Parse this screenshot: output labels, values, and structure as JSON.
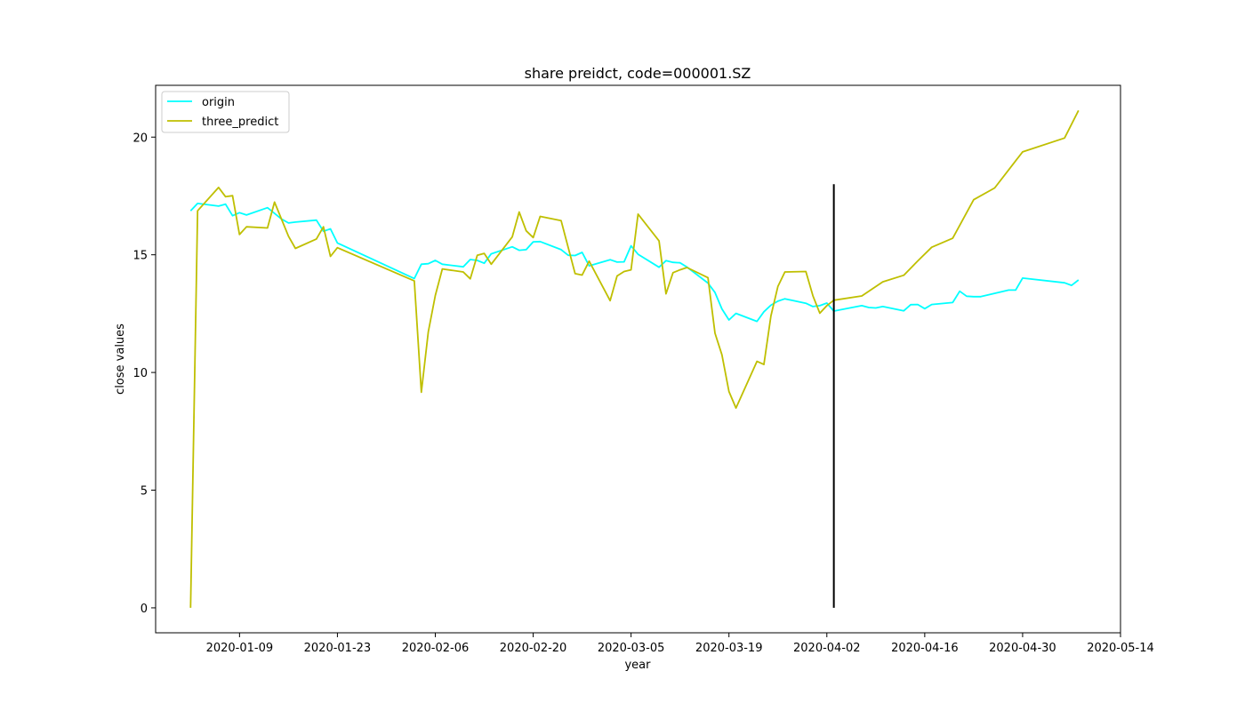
{
  "chart_data": {
    "type": "line",
    "title": "share preidct, code=000001.SZ",
    "xlabel": "year",
    "ylabel": "close values",
    "x_ticks": [
      "2020-01-09",
      "2020-01-23",
      "2020-02-06",
      "2020-02-20",
      "2020-03-05",
      "2020-03-19",
      "2020-04-02",
      "2020-04-16",
      "2020-04-30",
      "2020-05-14"
    ],
    "y_ticks": [
      0,
      5,
      10,
      15,
      20
    ],
    "xlim": [
      "2019-12-28",
      "2020-05-14"
    ],
    "ylim": [
      -1.06,
      22.2
    ],
    "legend": {
      "placement": "top-left",
      "entries": [
        "origin",
        "three_predict"
      ]
    },
    "grid": false,
    "divider": {
      "date": "2020-04-03",
      "y_range": [
        0,
        18
      ]
    },
    "colors": {
      "origin": "#00ffff",
      "three_predict": "#bfbf00",
      "divider": "#000000"
    },
    "series": [
      {
        "name": "origin",
        "points": [
          [
            "2020-01-02",
            16.87
          ],
          [
            "2020-01-03",
            17.18
          ],
          [
            "2020-01-06",
            17.07
          ],
          [
            "2020-01-07",
            17.15
          ],
          [
            "2020-01-08",
            16.66
          ],
          [
            "2020-01-09",
            16.79
          ],
          [
            "2020-01-10",
            16.69
          ],
          [
            "2020-01-13",
            17.0
          ],
          [
            "2020-01-14",
            16.76
          ],
          [
            "2020-01-15",
            16.52
          ],
          [
            "2020-01-16",
            16.35
          ],
          [
            "2020-01-17",
            16.39
          ],
          [
            "2020-01-20",
            16.47
          ],
          [
            "2020-01-21",
            16.0
          ],
          [
            "2020-01-22",
            16.1
          ],
          [
            "2020-01-23",
            15.5
          ],
          [
            "2020-02-03",
            13.99
          ],
          [
            "2020-02-04",
            14.6
          ],
          [
            "2020-02-05",
            14.62
          ],
          [
            "2020-02-06",
            14.76
          ],
          [
            "2020-02-07",
            14.6
          ],
          [
            "2020-02-10",
            14.49
          ],
          [
            "2020-02-11",
            14.8
          ],
          [
            "2020-02-12",
            14.76
          ],
          [
            "2020-02-13",
            14.64
          ],
          [
            "2020-02-14",
            15.04
          ],
          [
            "2020-02-17",
            15.34
          ],
          [
            "2020-02-18",
            15.19
          ],
          [
            "2020-02-19",
            15.22
          ],
          [
            "2020-02-20",
            15.55
          ],
          [
            "2020-02-21",
            15.56
          ],
          [
            "2020-02-24",
            15.22
          ],
          [
            "2020-02-25",
            14.98
          ],
          [
            "2020-02-26",
            14.97
          ],
          [
            "2020-02-27",
            15.1
          ],
          [
            "2020-02-28",
            14.53
          ],
          [
            "2020-03-02",
            14.79
          ],
          [
            "2020-03-03",
            14.69
          ],
          [
            "2020-03-04",
            14.7
          ],
          [
            "2020-03-05",
            15.38
          ],
          [
            "2020-03-06",
            15.02
          ],
          [
            "2020-03-09",
            14.47
          ],
          [
            "2020-03-10",
            14.75
          ],
          [
            "2020-03-11",
            14.68
          ],
          [
            "2020-03-12",
            14.66
          ],
          [
            "2020-03-13",
            14.48
          ],
          [
            "2020-03-16",
            13.8
          ],
          [
            "2020-03-17",
            13.4
          ],
          [
            "2020-03-18",
            12.7
          ],
          [
            "2020-03-19",
            12.23
          ],
          [
            "2020-03-20",
            12.51
          ],
          [
            "2020-03-23",
            12.17
          ],
          [
            "2020-03-24",
            12.58
          ],
          [
            "2020-03-25",
            12.86
          ],
          [
            "2020-03-26",
            13.03
          ],
          [
            "2020-03-27",
            13.13
          ],
          [
            "2020-03-30",
            12.94
          ],
          [
            "2020-03-31",
            12.8
          ],
          [
            "2020-04-01",
            12.84
          ],
          [
            "2020-04-02",
            12.95
          ],
          [
            "2020-04-03",
            12.61
          ],
          [
            "2020-04-07",
            12.84
          ],
          [
            "2020-04-08",
            12.76
          ],
          [
            "2020-04-09",
            12.74
          ],
          [
            "2020-04-10",
            12.8
          ],
          [
            "2020-04-13",
            12.62
          ],
          [
            "2020-04-14",
            12.88
          ],
          [
            "2020-04-15",
            12.89
          ],
          [
            "2020-04-16",
            12.71
          ],
          [
            "2020-04-17",
            12.89
          ],
          [
            "2020-04-20",
            12.97
          ],
          [
            "2020-04-21",
            13.45
          ],
          [
            "2020-04-22",
            13.24
          ],
          [
            "2020-04-23",
            13.22
          ],
          [
            "2020-04-24",
            13.22
          ],
          [
            "2020-04-27",
            13.43
          ],
          [
            "2020-04-28",
            13.5
          ],
          [
            "2020-04-29",
            13.5
          ],
          [
            "2020-04-30",
            14.01
          ],
          [
            "2020-05-06",
            13.81
          ],
          [
            "2020-05-07",
            13.7
          ],
          [
            "2020-05-08",
            13.93
          ]
        ]
      },
      {
        "name": "three_predict",
        "points": [
          [
            "2020-01-02",
            0.0
          ],
          [
            "2020-01-03",
            16.87
          ],
          [
            "2020-01-06",
            17.86
          ],
          [
            "2020-01-07",
            17.47
          ],
          [
            "2020-01-08",
            17.51
          ],
          [
            "2020-01-09",
            15.86
          ],
          [
            "2020-01-10",
            16.19
          ],
          [
            "2020-01-13",
            16.14
          ],
          [
            "2020-01-14",
            17.24
          ],
          [
            "2020-01-16",
            15.79
          ],
          [
            "2020-01-17",
            15.27
          ],
          [
            "2020-01-20",
            15.67
          ],
          [
            "2020-01-21",
            16.19
          ],
          [
            "2020-01-22",
            14.93
          ],
          [
            "2020-01-23",
            15.3
          ],
          [
            "2020-02-03",
            13.89
          ],
          [
            "2020-02-04",
            9.16
          ],
          [
            "2020-02-05",
            11.72
          ],
          [
            "2020-02-06",
            13.27
          ],
          [
            "2020-02-07",
            14.4
          ],
          [
            "2020-02-10",
            14.27
          ],
          [
            "2020-02-11",
            13.98
          ],
          [
            "2020-02-12",
            14.98
          ],
          [
            "2020-02-13",
            15.06
          ],
          [
            "2020-02-14",
            14.6
          ],
          [
            "2020-02-17",
            15.76
          ],
          [
            "2020-02-18",
            16.82
          ],
          [
            "2020-02-19",
            16.02
          ],
          [
            "2020-02-20",
            15.73
          ],
          [
            "2020-02-21",
            16.63
          ],
          [
            "2020-02-24",
            16.45
          ],
          [
            "2020-02-26",
            14.2
          ],
          [
            "2020-02-27",
            14.14
          ],
          [
            "2020-02-28",
            14.73
          ],
          [
            "2020-03-02",
            13.05
          ],
          [
            "2020-03-03",
            14.1
          ],
          [
            "2020-03-04",
            14.29
          ],
          [
            "2020-03-05",
            14.36
          ],
          [
            "2020-03-06",
            16.73
          ],
          [
            "2020-03-09",
            15.59
          ],
          [
            "2020-03-10",
            13.34
          ],
          [
            "2020-03-11",
            14.24
          ],
          [
            "2020-03-12",
            14.36
          ],
          [
            "2020-03-13",
            14.46
          ],
          [
            "2020-03-16",
            14.03
          ],
          [
            "2020-03-17",
            11.67
          ],
          [
            "2020-03-18",
            10.75
          ],
          [
            "2020-03-19",
            9.19
          ],
          [
            "2020-03-20",
            8.49
          ],
          [
            "2020-03-23",
            10.47
          ],
          [
            "2020-03-24",
            10.34
          ],
          [
            "2020-03-25",
            12.4
          ],
          [
            "2020-03-26",
            13.65
          ],
          [
            "2020-03-27",
            14.27
          ],
          [
            "2020-03-30",
            14.29
          ],
          [
            "2020-03-31",
            13.26
          ],
          [
            "2020-04-01",
            12.52
          ],
          [
            "2020-04-02",
            12.84
          ],
          [
            "2020-04-03",
            13.07
          ],
          [
            "2020-04-07",
            13.25
          ],
          [
            "2020-04-10",
            13.85
          ],
          [
            "2020-04-13",
            14.13
          ],
          [
            "2020-04-15",
            14.74
          ],
          [
            "2020-04-17",
            15.32
          ],
          [
            "2020-04-20",
            15.7
          ],
          [
            "2020-04-23",
            17.34
          ],
          [
            "2020-04-26",
            17.84
          ],
          [
            "2020-04-30",
            19.37
          ],
          [
            "2020-05-06",
            19.96
          ],
          [
            "2020-05-08",
            21.13
          ]
        ]
      }
    ]
  }
}
